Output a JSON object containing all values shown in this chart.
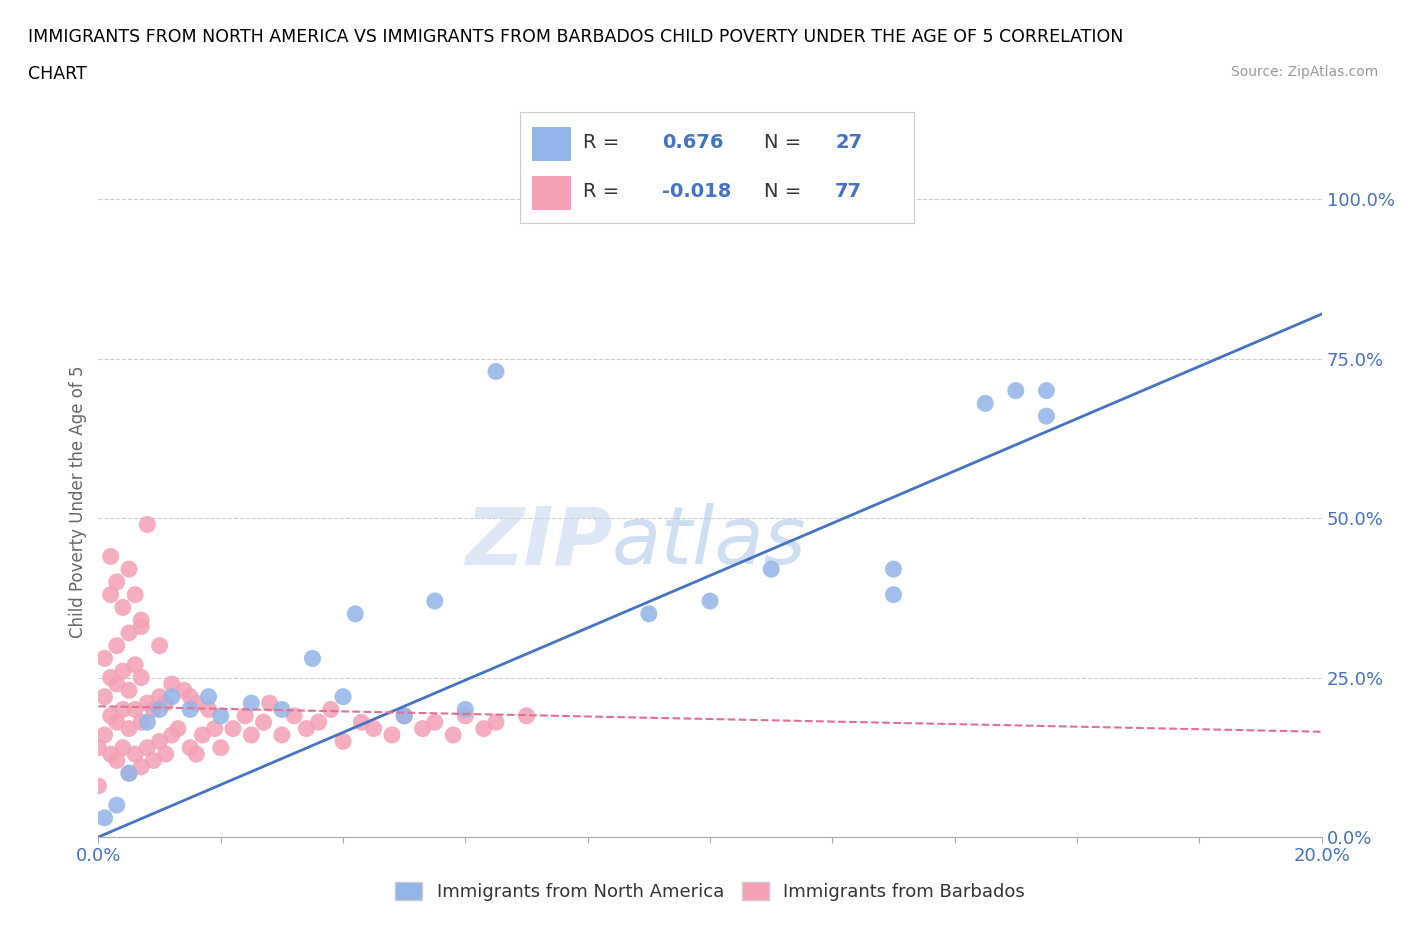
{
  "title_line1": "IMMIGRANTS FROM NORTH AMERICA VS IMMIGRANTS FROM BARBADOS CHILD POVERTY UNDER THE AGE OF 5 CORRELATION",
  "title_line2": "CHART",
  "source_text": "Source: ZipAtlas.com",
  "ylabel": "Child Poverty Under the Age of 5",
  "xlim": [
    0.0,
    0.2
  ],
  "ylim": [
    0.0,
    1.05
  ],
  "x_ticks": [
    0.0,
    0.02,
    0.04,
    0.06,
    0.08,
    0.1,
    0.12,
    0.14,
    0.16,
    0.18,
    0.2
  ],
  "y_ticks": [
    0.0,
    0.25,
    0.5,
    0.75,
    1.0
  ],
  "y_tick_labels": [
    "0.0%",
    "25.0%",
    "50.0%",
    "75.0%",
    "100.0%"
  ],
  "blue_R": 0.676,
  "blue_N": 27,
  "pink_R": -0.018,
  "pink_N": 77,
  "blue_color": "#92b4e8",
  "pink_color": "#f4a0b5",
  "blue_line_color": "#4472c4",
  "pink_line_color": "#e07090",
  "watermark_zip": "ZIP",
  "watermark_atlas": "atlas",
  "blue_scatter_x": [
    0.001,
    0.003,
    0.005,
    0.008,
    0.01,
    0.012,
    0.015,
    0.018,
    0.02,
    0.025,
    0.03,
    0.035,
    0.04,
    0.042,
    0.05,
    0.055,
    0.06,
    0.065,
    0.09,
    0.1,
    0.11,
    0.13,
    0.13,
    0.145,
    0.15,
    0.155,
    0.155
  ],
  "blue_scatter_y": [
    0.03,
    0.05,
    0.1,
    0.18,
    0.2,
    0.22,
    0.2,
    0.22,
    0.19,
    0.21,
    0.2,
    0.28,
    0.22,
    0.35,
    0.19,
    0.37,
    0.2,
    0.73,
    0.35,
    0.37,
    0.42,
    0.38,
    0.42,
    0.68,
    0.7,
    0.66,
    0.7
  ],
  "pink_scatter_x": [
    0.0,
    0.0,
    0.001,
    0.001,
    0.001,
    0.002,
    0.002,
    0.002,
    0.002,
    0.003,
    0.003,
    0.003,
    0.003,
    0.004,
    0.004,
    0.004,
    0.005,
    0.005,
    0.005,
    0.005,
    0.006,
    0.006,
    0.006,
    0.007,
    0.007,
    0.007,
    0.007,
    0.008,
    0.008,
    0.008,
    0.009,
    0.009,
    0.01,
    0.01,
    0.01,
    0.011,
    0.011,
    0.012,
    0.012,
    0.013,
    0.014,
    0.015,
    0.015,
    0.016,
    0.016,
    0.017,
    0.018,
    0.019,
    0.02,
    0.022,
    0.024,
    0.025,
    0.027,
    0.028,
    0.03,
    0.032,
    0.034,
    0.036,
    0.038,
    0.04,
    0.043,
    0.045,
    0.048,
    0.05,
    0.053,
    0.055,
    0.058,
    0.06,
    0.063,
    0.065,
    0.07,
    0.002,
    0.003,
    0.004,
    0.005,
    0.006,
    0.007
  ],
  "pink_scatter_y": [
    0.08,
    0.14,
    0.16,
    0.22,
    0.28,
    0.13,
    0.19,
    0.25,
    0.38,
    0.12,
    0.18,
    0.24,
    0.3,
    0.14,
    0.2,
    0.26,
    0.1,
    0.17,
    0.23,
    0.32,
    0.13,
    0.2,
    0.27,
    0.11,
    0.18,
    0.25,
    0.33,
    0.14,
    0.21,
    0.49,
    0.12,
    0.2,
    0.15,
    0.22,
    0.3,
    0.13,
    0.21,
    0.16,
    0.24,
    0.17,
    0.23,
    0.14,
    0.22,
    0.13,
    0.21,
    0.16,
    0.2,
    0.17,
    0.14,
    0.17,
    0.19,
    0.16,
    0.18,
    0.21,
    0.16,
    0.19,
    0.17,
    0.18,
    0.2,
    0.15,
    0.18,
    0.17,
    0.16,
    0.19,
    0.17,
    0.18,
    0.16,
    0.19,
    0.17,
    0.18,
    0.19,
    0.44,
    0.4,
    0.36,
    0.42,
    0.38,
    0.34
  ],
  "blue_line_x0": 0.0,
  "blue_line_y0": 0.0,
  "blue_line_x1": 0.2,
  "blue_line_y1": 0.82,
  "pink_line_x0": 0.0,
  "pink_line_y0": 0.205,
  "pink_line_x1": 0.2,
  "pink_line_y1": 0.165,
  "background_color": "#ffffff",
  "grid_color": "#cccccc",
  "title_color": "#000000",
  "axis_label_color": "#666666",
  "tick_label_color": "#4472c4"
}
